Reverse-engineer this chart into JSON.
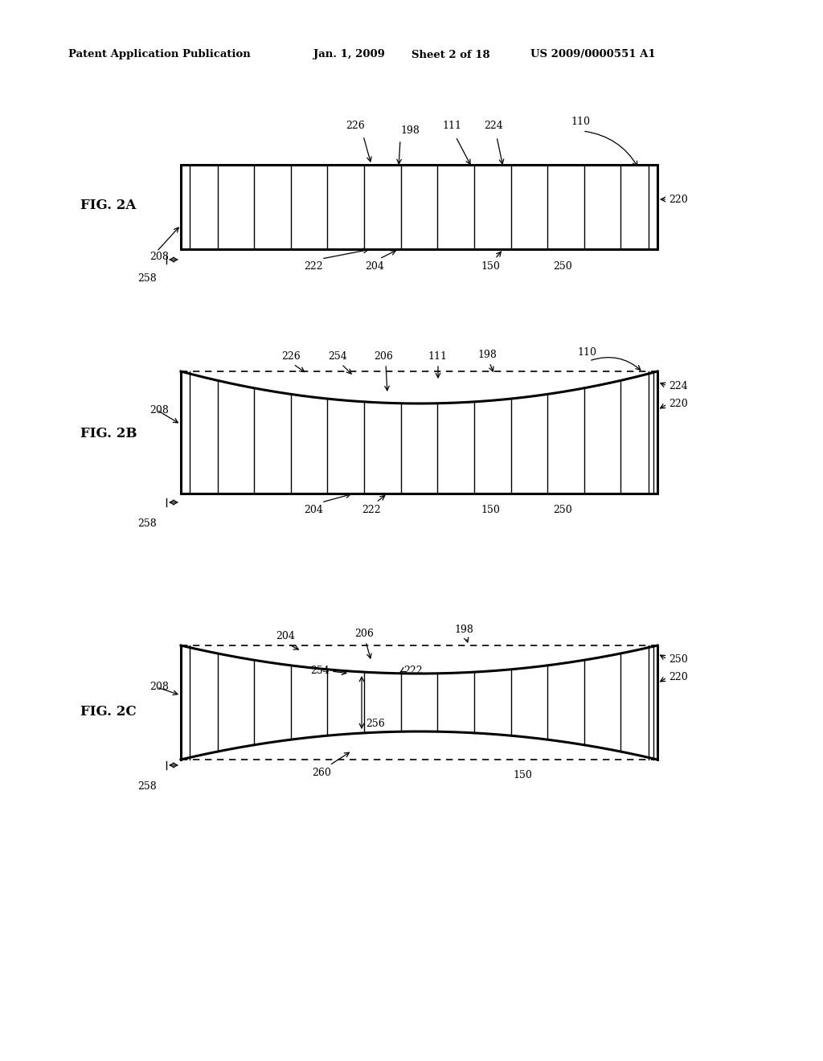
{
  "bg_color": "#ffffff",
  "header_text": "Patent Application Publication",
  "header_date": "Jan. 1, 2009",
  "header_sheet": "Sheet 2 of 18",
  "header_patent": "US 2009/0000551 A1",
  "lw_thick": 2.2,
  "lw_thin": 1.0,
  "lw_dashed": 1.2,
  "fs_label": 9.0,
  "fs_header": 9.5,
  "fs_fig": 12.0,
  "n_vlines": 13
}
